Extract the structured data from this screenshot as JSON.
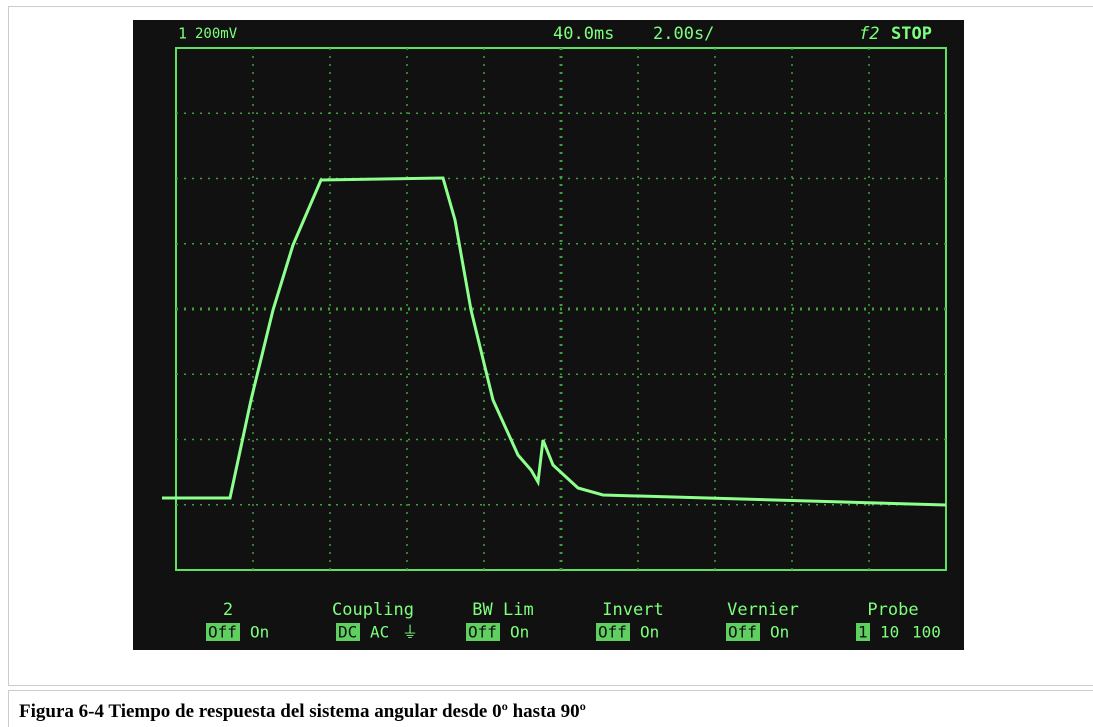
{
  "screen": {
    "channel": "1",
    "scale": "200mV",
    "delay": "40.0ms",
    "timebase": "2.00s/",
    "trigger": "f2",
    "status": "STOP"
  },
  "softkeys": [
    {
      "label": "2",
      "options": [
        "Off",
        "On"
      ]
    },
    {
      "label": "Coupling",
      "options": [
        "DC",
        "AC",
        "⏚"
      ]
    },
    {
      "label": "BW Lim",
      "options": [
        "Off",
        "On"
      ]
    },
    {
      "label": "Invert",
      "options": [
        "Off",
        "On"
      ]
    },
    {
      "label": "Vernier",
      "options": [
        "Off",
        "On"
      ]
    },
    {
      "label": "Probe",
      "options": [
        "1",
        "10",
        "100"
      ]
    }
  ],
  "caption": "Figura 6-4 Tiempo de respuesta del sistema angular desde 0º hasta 90º"
}
